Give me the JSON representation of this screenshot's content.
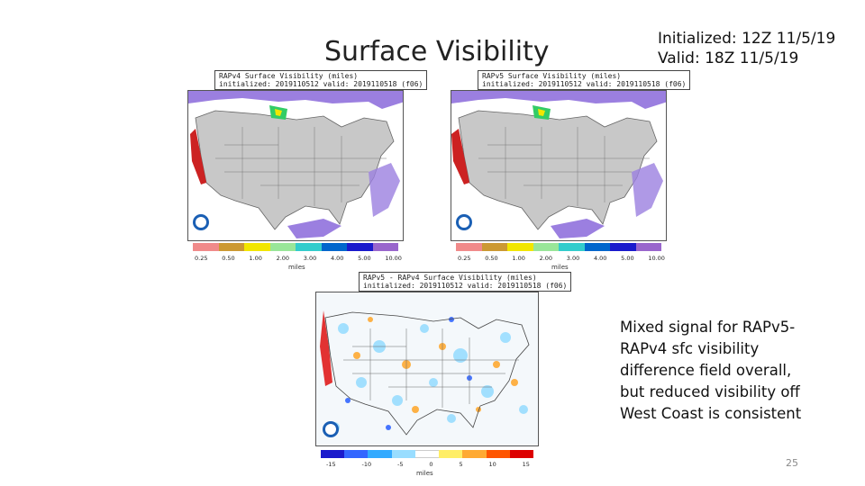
{
  "slide": {
    "title": "Surface Visibility",
    "init_line1": "Initialized: 12Z 11/5/19",
    "init_line2": "Valid: 18Z 11/5/19",
    "note": "Mixed signal for RAPv5-RAPv4 sfc visibility difference field overall, but reduced visibility off West Coast is consistent",
    "page_number": "25"
  },
  "panels": [
    {
      "title_line1": "RAPv4 Surface Visibility (miles)",
      "title_line2": "initialized: 2019110512 valid: 2019110518 (f06)",
      "tick_labels": [
        "0.25",
        "0.50",
        "1.00",
        "2.00",
        "3.00",
        "4.00",
        "5.00",
        "10.00"
      ],
      "units": "miles",
      "colors": [
        "#f08a8a",
        "#cc9933",
        "#f2e600",
        "#99e699",
        "#33cccc",
        "#0066cc",
        "#1a1acc",
        "#9966cc"
      ]
    },
    {
      "title_line1": "RAPv5 Surface Visibility (miles)",
      "title_line2": "initialized: 2019110512 valid: 2019110518 (f06)",
      "tick_labels": [
        "0.25",
        "0.50",
        "1.00",
        "2.00",
        "3.00",
        "4.00",
        "5.00",
        "10.00"
      ],
      "units": "miles",
      "colors": [
        "#f08a8a",
        "#cc9933",
        "#f2e600",
        "#99e699",
        "#33cccc",
        "#0066cc",
        "#1a1acc",
        "#9966cc"
      ]
    },
    {
      "title_line1": "RAPv5 - RAPv4 Surface Visibility (miles)",
      "title_line2": "initialized: 2019110512 valid: 2019110518 (f06)",
      "tick_labels": [
        "-15",
        "-10",
        "-5",
        "0",
        "5",
        "10",
        "15"
      ],
      "units": "miles",
      "colors": [
        "#1a1acc",
        "#3366ff",
        "#33aaff",
        "#99ddff",
        "#ffffff",
        "#ffee66",
        "#ffaa33",
        "#ff5500",
        "#dd0000"
      ]
    }
  ]
}
